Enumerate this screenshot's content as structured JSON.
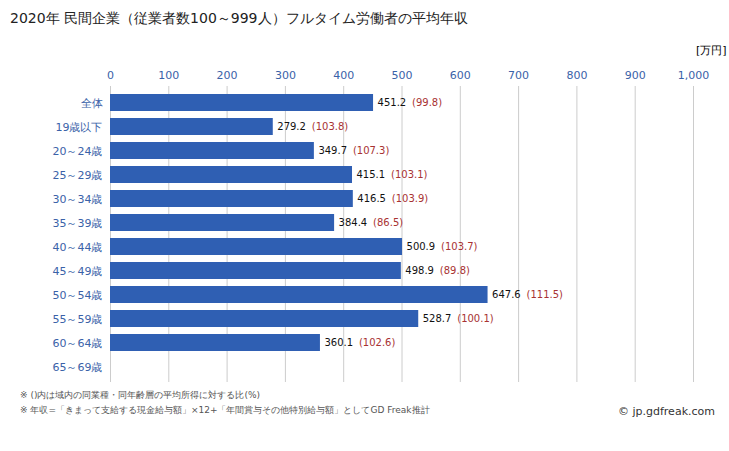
{
  "chart_data": {
    "type": "bar",
    "orientation": "horizontal",
    "title": "2020年 民間企業（従業者数100～999人）フルタイム労働者の平均年収",
    "x_label": "[万円]",
    "categories": [
      "全体",
      "19歳以下",
      "20～24歳",
      "25～29歳",
      "30～34歳",
      "35～39歳",
      "40～44歳",
      "45～49歳",
      "50～54歳",
      "55～59歳",
      "60～64歳",
      "65～69歳"
    ],
    "values": [
      451.2,
      279.2,
      349.7,
      415.1,
      416.5,
      384.4,
      500.9,
      498.9,
      647.6,
      528.7,
      360.1,
      null
    ],
    "ratio_labels": [
      "(99.8)",
      "(103.8)",
      "(107.3)",
      "(103.1)",
      "(103.9)",
      "(86.5)",
      "(103.7)",
      "(89.8)",
      "(111.5)",
      "(100.1)",
      "(102.6)",
      null
    ],
    "color": "#2f5fb3",
    "xlim": [
      0,
      1000
    ],
    "xticks": [
      0,
      100,
      200,
      300,
      400,
      500,
      600,
      700,
      800,
      900,
      1000
    ],
    "grid": true,
    "data_labels": true,
    "notes": [
      "※ ()内は域内の同業種・同年齢層の平均所得に対する比(%)",
      "※ 年収=「きまって支給する現金給与額」×12+「年間賞与その他特別給与額」としてGD Freak推計"
    ],
    "credit": "© jp.gdfreak.com"
  }
}
